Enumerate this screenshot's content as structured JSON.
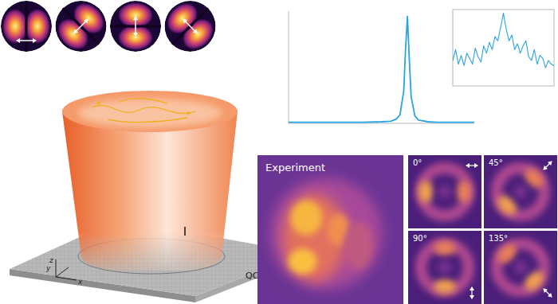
{
  "modes": [
    {
      "angle": 0
    },
    {
      "angle": 45
    },
    {
      "angle": 90
    },
    {
      "angle": 135
    }
  ],
  "device": {
    "label": "QCL chip",
    "axes": [
      "x",
      "y",
      "z"
    ]
  },
  "chart_data": [
    {
      "type": "line",
      "color": "#2aa3e0",
      "tick_labels": false,
      "xlim": [
        0,
        100
      ],
      "ylim": [
        0,
        1.05
      ],
      "x": [
        0,
        10,
        20,
        30,
        40,
        50,
        55,
        58,
        60,
        62,
        63,
        64,
        65,
        66,
        68,
        70,
        75,
        80,
        90,
        100
      ],
      "values": [
        0.01,
        0.01,
        0.01,
        0.01,
        0.01,
        0.015,
        0.02,
        0.04,
        0.08,
        0.3,
        0.7,
        1.0,
        0.6,
        0.25,
        0.07,
        0.03,
        0.015,
        0.01,
        0.01,
        0.01
      ]
    },
    {
      "type": "line",
      "color": "#2aa3e0",
      "tick_labels": false,
      "xlim": [
        55,
        73
      ],
      "ylim": [
        0,
        1.05
      ],
      "x": [
        55,
        55.5,
        56,
        56.5,
        57,
        57.5,
        58,
        58.5,
        59,
        59.5,
        60,
        60.5,
        61,
        61.5,
        62,
        62.5,
        63,
        63.5,
        64,
        64.5,
        65,
        65.5,
        66,
        66.5,
        67,
        67.5,
        68,
        68.5,
        69,
        69.5,
        70,
        70.5,
        71,
        71.5,
        72,
        72.5,
        73
      ],
      "values": [
        0.35,
        0.5,
        0.3,
        0.42,
        0.28,
        0.45,
        0.38,
        0.3,
        0.52,
        0.4,
        0.33,
        0.55,
        0.45,
        0.6,
        0.5,
        0.68,
        0.62,
        0.8,
        1.0,
        0.78,
        0.62,
        0.7,
        0.5,
        0.58,
        0.45,
        0.55,
        0.62,
        0.4,
        0.35,
        0.5,
        0.3,
        0.42,
        0.38,
        0.25,
        0.35,
        0.3,
        0.28
      ]
    }
  ],
  "far_field": {
    "experiment_label": "Experiment",
    "panels": [
      {
        "label": "0°",
        "angle": 0
      },
      {
        "label": "45°",
        "angle": 45
      },
      {
        "label": "90°",
        "angle": 90
      },
      {
        "label": "135°",
        "angle": 135
      }
    ]
  }
}
